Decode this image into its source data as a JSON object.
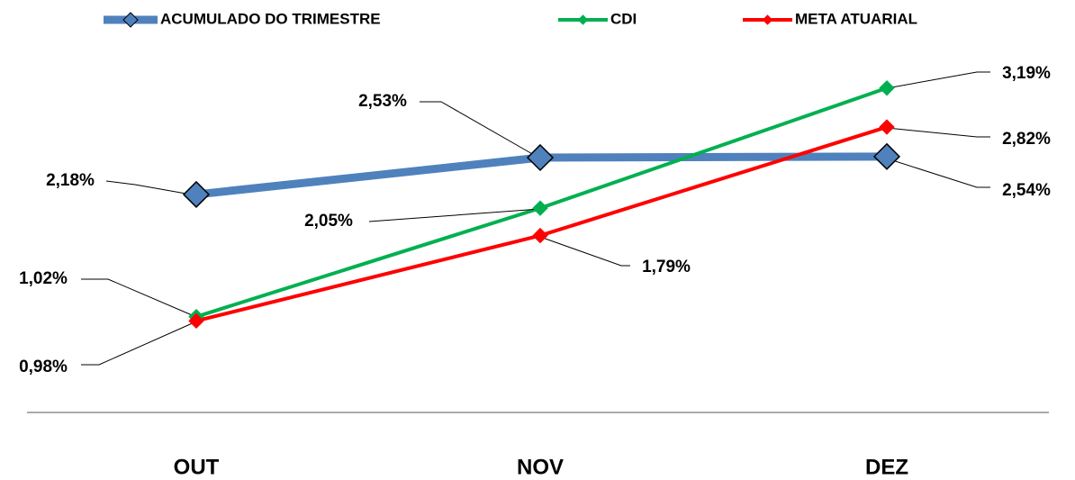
{
  "chart_data": {
    "type": "line",
    "categories": [
      "OUT",
      "NOV",
      "DEZ"
    ],
    "series": [
      {
        "name": "ACUMULADO DO TRIMESTRE",
        "color": "#4f81bd",
        "values": [
          2.18,
          2.53,
          2.54
        ],
        "value_labels": [
          "2,18%",
          "2,53%",
          "2,54%"
        ]
      },
      {
        "name": "CDI",
        "color": "#00b050",
        "values": [
          1.02,
          2.05,
          3.19
        ],
        "value_labels": [
          "1,02%",
          "2,05%",
          "3,19%"
        ]
      },
      {
        "name": "META ATUARIAL",
        "color": "#ff0000",
        "values": [
          0.98,
          1.79,
          2.82
        ],
        "value_labels": [
          "0,98%",
          "1,79%",
          "2,82%"
        ]
      }
    ],
    "legend": "top",
    "grid": false
  }
}
